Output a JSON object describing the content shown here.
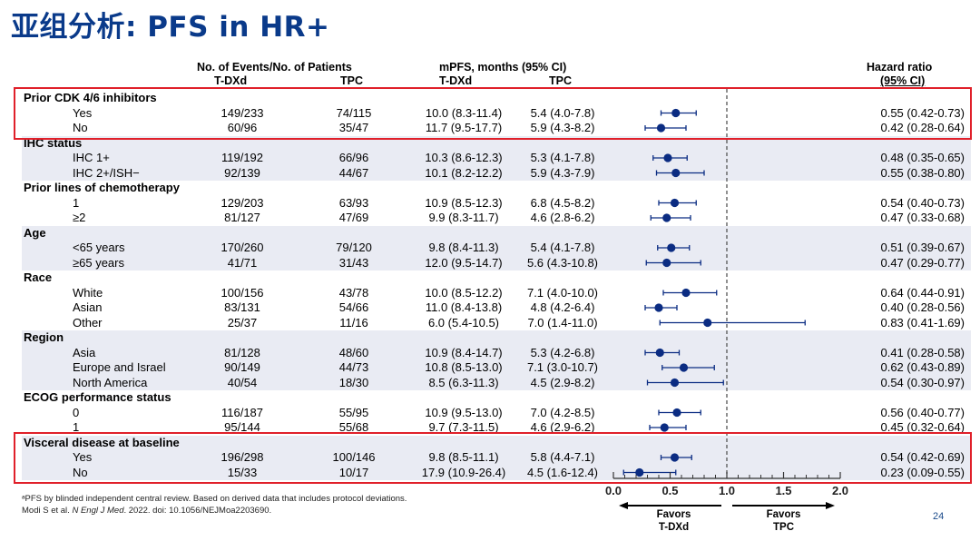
{
  "title": "亚组分析: PFS in HR+",
  "headers": {
    "events": "No. of Events/No. of Patients",
    "events_tdxd": "T-DXd",
    "events_tpc": "TPC",
    "mpfs": "mPFS, months (95% CI)",
    "mpfs_tdxd": "T-DXd",
    "mpfs_tpc": "TPC",
    "hr": "Hazard ratio",
    "hr_ci": "(95% CI)"
  },
  "chart_data": {
    "type": "forest",
    "xlim": [
      0,
      2.0
    ],
    "xticks": [
      "0.0",
      "0.5",
      "1.0",
      "1.5",
      "2.0"
    ],
    "reference_line": 1.0,
    "favors_left": [
      "Favors",
      "T-DXd"
    ],
    "favors_right": [
      "Favors",
      "TPC"
    ],
    "groups": [
      {
        "name": "Prior CDK 4/6 inhibitors",
        "highlight": true,
        "rows": [
          {
            "label": "Yes",
            "ev_tdxd": "149/233",
            "ev_tpc": "74/115",
            "mpfs_tdxd": "10.0 (8.3-11.4)",
            "mpfs_tpc": "5.4 (4.0-7.8)",
            "hr_text": "0.55 (0.42-0.73)",
            "hr": 0.55,
            "lo": 0.42,
            "hi": 0.73
          },
          {
            "label": "No",
            "ev_tdxd": "60/96",
            "ev_tpc": "35/47",
            "mpfs_tdxd": "11.7 (9.5-17.7)",
            "mpfs_tpc": "5.9 (4.3-8.2)",
            "hr_text": "0.42 (0.28-0.64)",
            "hr": 0.42,
            "lo": 0.28,
            "hi": 0.64
          }
        ]
      },
      {
        "name": "IHC status",
        "highlight": false,
        "rows": [
          {
            "label": "IHC 1+",
            "ev_tdxd": "119/192",
            "ev_tpc": "66/96",
            "mpfs_tdxd": "10.3 (8.6-12.3)",
            "mpfs_tpc": "5.3 (4.1-7.8)",
            "hr_text": "0.48 (0.35-0.65)",
            "hr": 0.48,
            "lo": 0.35,
            "hi": 0.65
          },
          {
            "label": "IHC 2+/ISH−",
            "ev_tdxd": "92/139",
            "ev_tpc": "44/67",
            "mpfs_tdxd": "10.1 (8.2-12.2)",
            "mpfs_tpc": "5.9 (4.3-7.9)",
            "hr_text": "0.55 (0.38-0.80)",
            "hr": 0.55,
            "lo": 0.38,
            "hi": 0.8
          }
        ]
      },
      {
        "name": "Prior lines of chemotherapy",
        "highlight": false,
        "rows": [
          {
            "label": "1",
            "ev_tdxd": "129/203",
            "ev_tpc": "63/93",
            "mpfs_tdxd": "10.9 (8.5-12.3)",
            "mpfs_tpc": "6.8 (4.5-8.2)",
            "hr_text": "0.54 (0.40-0.73)",
            "hr": 0.54,
            "lo": 0.4,
            "hi": 0.73
          },
          {
            "label": "≥2",
            "ev_tdxd": "81/127",
            "ev_tpc": "47/69",
            "mpfs_tdxd": "9.9 (8.3-11.7)",
            "mpfs_tpc": "4.6 (2.8-6.2)",
            "hr_text": "0.47 (0.33-0.68)",
            "hr": 0.47,
            "lo": 0.33,
            "hi": 0.68
          }
        ]
      },
      {
        "name": "Age",
        "highlight": false,
        "rows": [
          {
            "label": "<65 years",
            "ev_tdxd": "170/260",
            "ev_tpc": "79/120",
            "mpfs_tdxd": "9.8 (8.4-11.3)",
            "mpfs_tpc": "5.4 (4.1-7.8)",
            "hr_text": "0.51 (0.39-0.67)",
            "hr": 0.51,
            "lo": 0.39,
            "hi": 0.67
          },
          {
            "label": "≥65 years",
            "ev_tdxd": "41/71",
            "ev_tpc": "31/43",
            "mpfs_tdxd": "12.0 (9.5-14.7)",
            "mpfs_tpc": "5.6 (4.3-10.8)",
            "hr_text": "0.47 (0.29-0.77)",
            "hr": 0.47,
            "lo": 0.29,
            "hi": 0.77
          }
        ]
      },
      {
        "name": "Race",
        "highlight": false,
        "rows": [
          {
            "label": "White",
            "ev_tdxd": "100/156",
            "ev_tpc": "43/78",
            "mpfs_tdxd": "10.0 (8.5-12.2)",
            "mpfs_tpc": "7.1 (4.0-10.0)",
            "hr_text": "0.64 (0.44-0.91)",
            "hr": 0.64,
            "lo": 0.44,
            "hi": 0.91
          },
          {
            "label": "Asian",
            "ev_tdxd": "83/131",
            "ev_tpc": "54/66",
            "mpfs_tdxd": "11.0 (8.4-13.8)",
            "mpfs_tpc": "4.8 (4.2-6.4)",
            "hr_text": "0.40 (0.28-0.56)",
            "hr": 0.4,
            "lo": 0.28,
            "hi": 0.56
          },
          {
            "label": "Other",
            "ev_tdxd": "25/37",
            "ev_tpc": "11/16",
            "mpfs_tdxd": "6.0 (5.4-10.5)",
            "mpfs_tpc": "7.0 (1.4-11.0)",
            "hr_text": "0.83 (0.41-1.69)",
            "hr": 0.83,
            "lo": 0.41,
            "hi": 1.69
          }
        ]
      },
      {
        "name": "Region",
        "highlight": false,
        "rows": [
          {
            "label": "Asia",
            "ev_tdxd": "81/128",
            "ev_tpc": "48/60",
            "mpfs_tdxd": "10.9 (8.4-14.7)",
            "mpfs_tpc": "5.3 (4.2-6.8)",
            "hr_text": "0.41 (0.28-0.58)",
            "hr": 0.41,
            "lo": 0.28,
            "hi": 0.58
          },
          {
            "label": "Europe and Israel",
            "ev_tdxd": "90/149",
            "ev_tpc": "44/73",
            "mpfs_tdxd": "10.8 (8.5-13.0)",
            "mpfs_tpc": "7.1 (3.0-10.7)",
            "hr_text": "0.62 (0.43-0.89)",
            "hr": 0.62,
            "lo": 0.43,
            "hi": 0.89
          },
          {
            "label": "North America",
            "ev_tdxd": "40/54",
            "ev_tpc": "18/30",
            "mpfs_tdxd": "8.5 (6.3-11.3)",
            "mpfs_tpc": "4.5 (2.9-8.2)",
            "hr_text": "0.54 (0.30-0.97)",
            "hr": 0.54,
            "lo": 0.3,
            "hi": 0.97
          }
        ]
      },
      {
        "name": "ECOG performance status",
        "highlight": false,
        "rows": [
          {
            "label": "0",
            "ev_tdxd": "116/187",
            "ev_tpc": "55/95",
            "mpfs_tdxd": "10.9 (9.5-13.0)",
            "mpfs_tpc": "7.0 (4.2-8.5)",
            "hr_text": "0.56 (0.40-0.77)",
            "hr": 0.56,
            "lo": 0.4,
            "hi": 0.77
          },
          {
            "label": "1",
            "ev_tdxd": "95/144",
            "ev_tpc": "55/68",
            "mpfs_tdxd": "9.7 (7.3-11.5)",
            "mpfs_tpc": "4.6 (2.9-6.2)",
            "hr_text": "0.45 (0.32-0.64)",
            "hr": 0.45,
            "lo": 0.32,
            "hi": 0.64
          }
        ]
      },
      {
        "name": "Visceral disease at baseline",
        "highlight": true,
        "rows": [
          {
            "label": "Yes",
            "ev_tdxd": "196/298",
            "ev_tpc": "100/146",
            "mpfs_tdxd": "9.8 (8.5-11.1)",
            "mpfs_tpc": "5.8 (4.4-7.1)",
            "hr_text": "0.54 (0.42-0.69)",
            "hr": 0.54,
            "lo": 0.42,
            "hi": 0.69
          },
          {
            "label": "No",
            "ev_tdxd": "15/33",
            "ev_tpc": "10/17",
            "mpfs_tdxd": "17.9 (10.9-26.4)",
            "mpfs_tpc": "4.5 (1.6-12.4)",
            "hr_text": "0.23 (0.09-0.55)",
            "hr": 0.23,
            "lo": 0.09,
            "hi": 0.55
          }
        ]
      }
    ]
  },
  "footnote": {
    "line1": "ᵃPFS by blinded independent central review. Based on derived data that includes protocol deviations.",
    "line2_pre": "Modi S et al. ",
    "line2_journal": "N Engl J Med",
    "line2_post": ". 2022. doi: 10.1056/NEJMoa2203690."
  },
  "page_number": "24",
  "colors": {
    "title": "#0a3a8a",
    "marker": "#0b2c82",
    "highlight": "#e0202a",
    "band": "#e9ebf3"
  }
}
